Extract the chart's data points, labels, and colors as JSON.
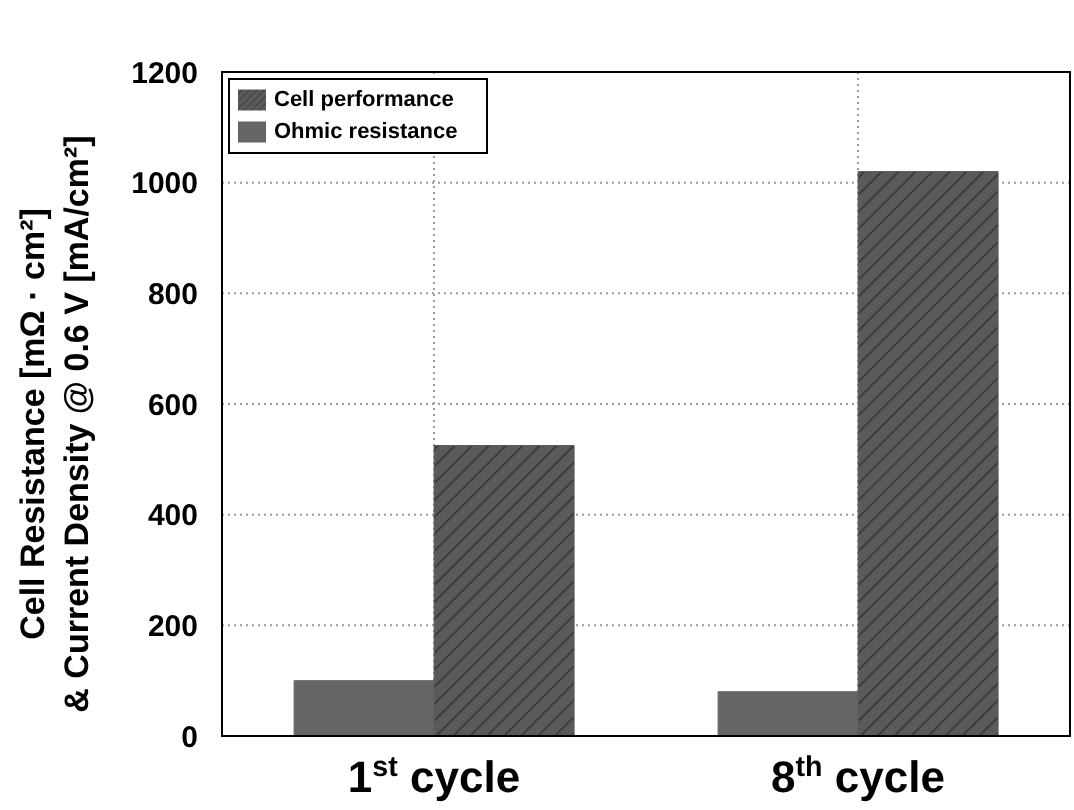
{
  "chart_data": {
    "type": "bar",
    "ylabel": "Cell Resistance [mΩ · cm²]\n& Current Density @ 0.6 V [mA/cm²]",
    "categories": [
      "1$^{st}$ cycle",
      "8$^{th}$ cycle"
    ],
    "series": [
      {
        "name": "Ohmic resistance",
        "color": "#666666",
        "values": [
          100,
          80
        ]
      },
      {
        "name": "Cell performance",
        "color": "#5a5a5a",
        "values": [
          525,
          1020
        ]
      }
    ],
    "ylim": [
      0,
      1200
    ],
    "yticks": [
      0,
      200,
      400,
      600,
      800,
      1000,
      1200
    ],
    "grid": true,
    "legend": "top left"
  }
}
